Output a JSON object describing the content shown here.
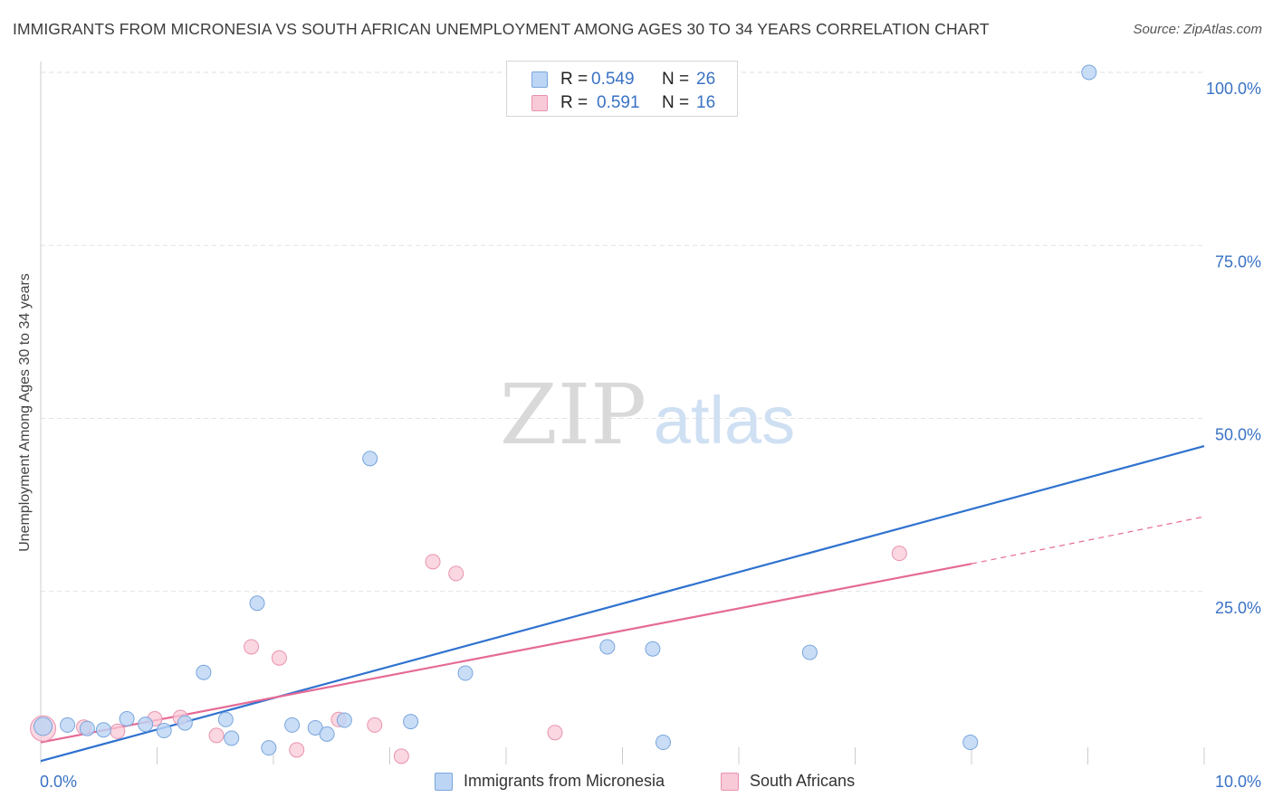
{
  "title": "IMMIGRANTS FROM MICRONESIA VS SOUTH AFRICAN UNEMPLOYMENT AMONG AGES 30 TO 34 YEARS CORRELATION CHART",
  "source": "Source: ZipAtlas.com",
  "watermark": {
    "zip": "ZIP",
    "atlas": "atlas"
  },
  "legend_stats": [
    {
      "r_label": "R =",
      "r_value": "0.549",
      "n_label": "N =",
      "n_value": "26"
    },
    {
      "r_label": "R =",
      "r_value": "0.591",
      "n_label": "N =",
      "n_value": "16"
    }
  ],
  "colors": {
    "blue_fill": "#bcd5f5",
    "blue_stroke": "#7aa6dc",
    "blue_line": "#2f72cf",
    "pink_fill": "#f8c9d7",
    "pink_stroke": "#e993ae",
    "pink_line": "#e56a96",
    "tick_text": "#3a72c4",
    "grid": "#e2e2e2"
  },
  "chart_data": {
    "type": "scatter",
    "title": "IMMIGRANTS FROM MICRONESIA VS SOUTH AFRICAN UNEMPLOYMENT AMONG AGES 30 TO 34 YEARS CORRELATION CHART",
    "xlabel": "",
    "ylabel": "Unemployment Among Ages 30 to 34 years",
    "xlim": [
      0,
      10
    ],
    "ylim": [
      0,
      100
    ],
    "x_tick_labels": [
      "0.0%",
      "10.0%"
    ],
    "y_tick_labels": [
      "25.0%",
      "50.0%",
      "75.0%",
      "100.0%"
    ],
    "legend_position": "bottom-center",
    "series": [
      {
        "name": "Immigrants from Micronesia",
        "color": "blue",
        "r": 0.549,
        "n": 26,
        "points": [
          [
            0.02,
            5.5
          ],
          [
            0.23,
            5.7
          ],
          [
            0.4,
            5.2
          ],
          [
            0.54,
            5.0
          ],
          [
            0.74,
            6.6
          ],
          [
            0.9,
            5.8
          ],
          [
            1.06,
            4.9
          ],
          [
            1.24,
            6.0
          ],
          [
            1.4,
            13.3
          ],
          [
            1.59,
            6.5
          ],
          [
            1.64,
            3.8
          ],
          [
            1.86,
            23.3
          ],
          [
            1.96,
            2.4
          ],
          [
            2.16,
            5.7
          ],
          [
            2.36,
            5.3
          ],
          [
            2.46,
            4.4
          ],
          [
            2.61,
            6.4
          ],
          [
            2.83,
            44.2
          ],
          [
            3.18,
            6.2
          ],
          [
            3.65,
            13.2
          ],
          [
            4.87,
            17.0
          ],
          [
            5.26,
            16.7
          ],
          [
            5.35,
            3.2
          ],
          [
            6.61,
            16.2
          ],
          [
            7.99,
            3.2
          ],
          [
            9.01,
            100.0
          ]
        ],
        "trend": {
          "x": [
            0.0,
            10.0
          ],
          "y": [
            0.5,
            46.0
          ],
          "style": "solid"
        }
      },
      {
        "name": "South Africans",
        "color": "pink",
        "r": 0.591,
        "n": 16,
        "points": [
          [
            0.02,
            5.2
          ],
          [
            0.37,
            5.4
          ],
          [
            0.66,
            4.8
          ],
          [
            0.98,
            6.6
          ],
          [
            1.2,
            6.8
          ],
          [
            1.51,
            4.2
          ],
          [
            1.81,
            17.0
          ],
          [
            2.05,
            15.4
          ],
          [
            2.2,
            2.1
          ],
          [
            2.56,
            6.5
          ],
          [
            2.87,
            5.7
          ],
          [
            3.1,
            1.2
          ],
          [
            3.37,
            29.3
          ],
          [
            3.57,
            27.6
          ],
          [
            4.42,
            4.6
          ],
          [
            7.38,
            30.5
          ]
        ],
        "trend": {
          "x": [
            0.0,
            8.0
          ],
          "y": [
            3.2,
            29.0
          ],
          "style": "solid"
        },
        "trend_extension": {
          "x": [
            8.0,
            10.0
          ],
          "y": [
            29.0,
            35.8
          ],
          "style": "dashed"
        }
      }
    ]
  },
  "axes_legend": {
    "blue_label": "Immigrants from Micronesia",
    "pink_label": "South Africans"
  }
}
